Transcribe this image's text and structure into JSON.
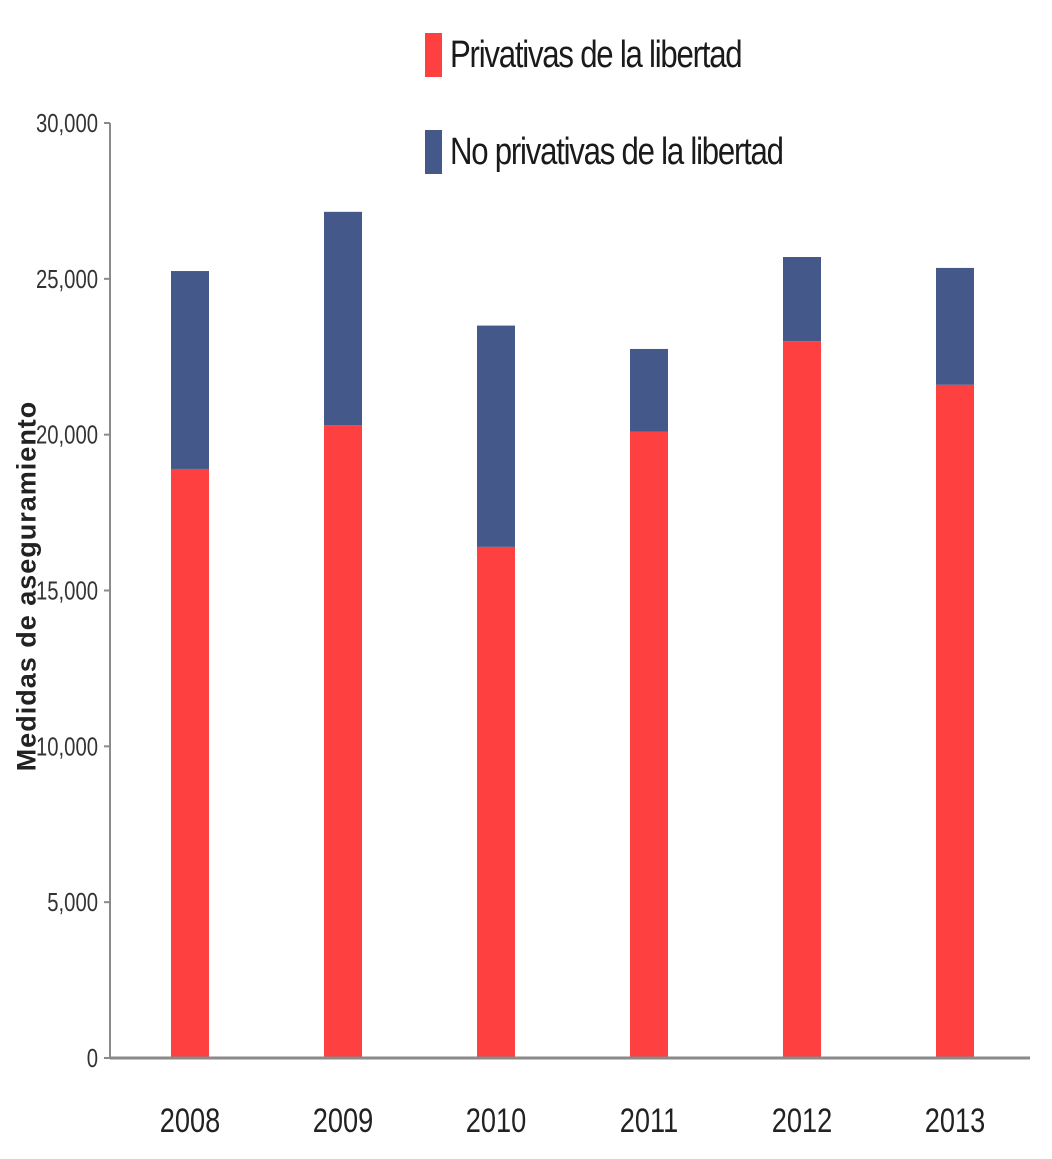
{
  "chart_data": {
    "type": "bar",
    "stacked": true,
    "categories": [
      "2008",
      "2009",
      "2010",
      "2011",
      "2012",
      "2013"
    ],
    "series": [
      {
        "name": "Privativas de la libertad",
        "color": "#fe4040",
        "values": [
          18900,
          20300,
          16400,
          20100,
          23000,
          21600
        ]
      },
      {
        "name": "No privativas de la libertad",
        "color": "#44588a",
        "values": [
          6350,
          6850,
          7100,
          2650,
          2700,
          3750
        ]
      }
    ],
    "ylabel": "Medidas de aseguramiento",
    "xlabel": "",
    "ylim": [
      0,
      30000
    ],
    "yticks": [
      0,
      5000,
      10000,
      15000,
      20000,
      25000,
      30000
    ],
    "ytick_labels": [
      "0",
      "5,000",
      "10,000",
      "15,000",
      "20,000",
      "25,000",
      "30,000"
    ],
    "grid": false,
    "legend_position": "top"
  }
}
